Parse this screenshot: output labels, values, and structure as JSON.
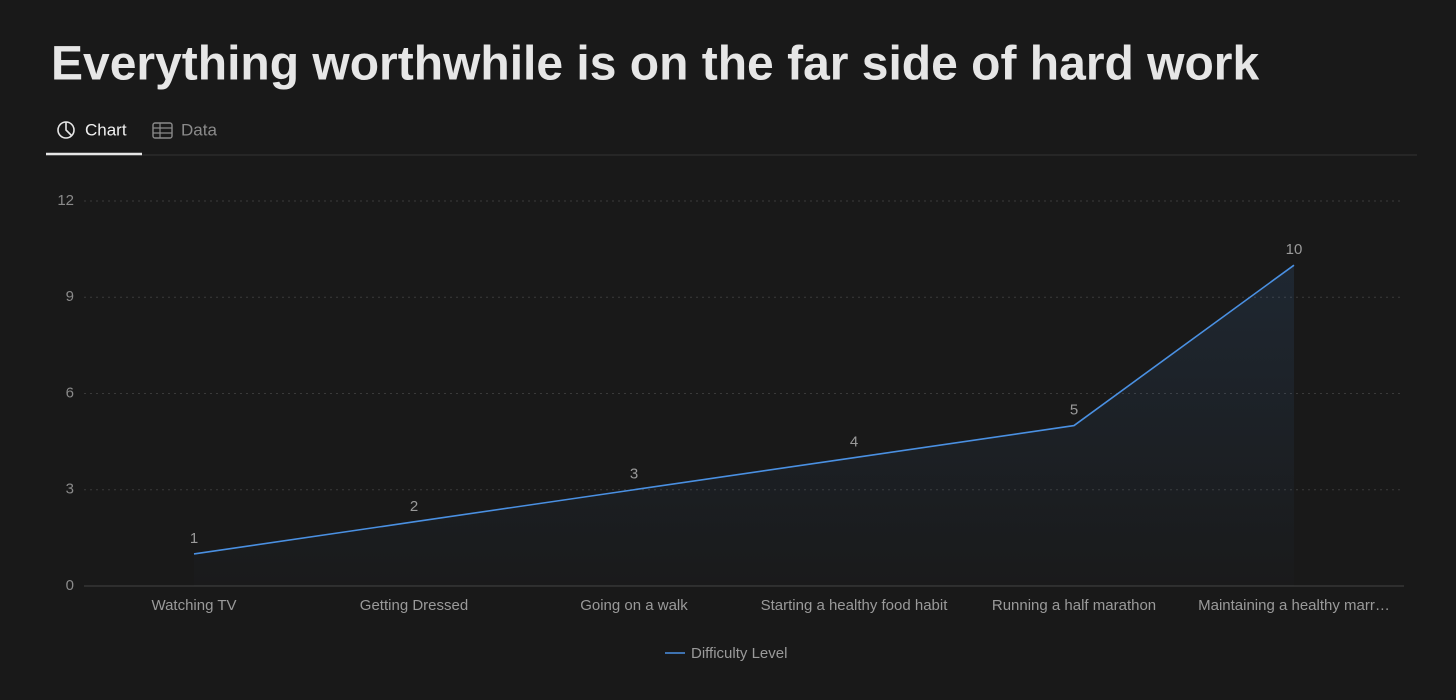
{
  "tabs": [
    "Chart",
    "Data"
  ],
  "chart_data": {
    "type": "line",
    "title": "Everything worthwhile is on the far side of hard work",
    "categories": [
      "Watching TV",
      "Getting Dressed",
      "Going on a walk",
      "Starting a healthy food habit",
      "Running a half marathon",
      "Maintaining a healthy marr…"
    ],
    "series": [
      {
        "name": "Difficulty Level",
        "color": "#4a90e2",
        "values": [
          1,
          2,
          3,
          4,
          5,
          10
        ]
      }
    ],
    "ylim": [
      0,
      12
    ],
    "yticks": [
      0,
      3,
      6,
      9,
      12
    ],
    "grid": true,
    "area": true,
    "data_labels": true,
    "legend": "bottom"
  }
}
